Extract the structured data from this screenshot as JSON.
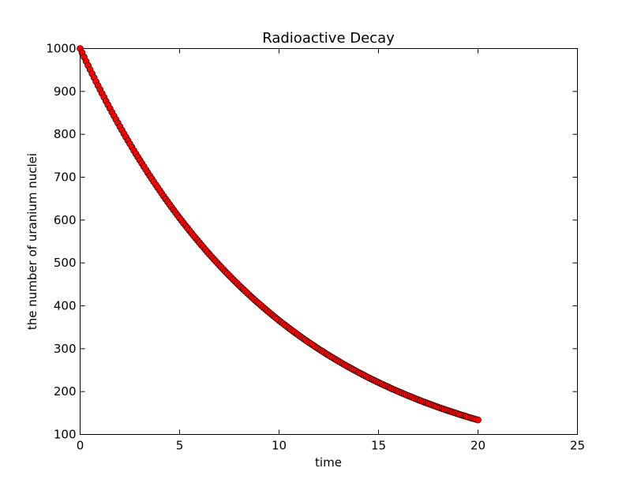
{
  "chart_data": {
    "type": "scatter",
    "title": "Radioactive Decay",
    "xlabel": "time",
    "ylabel": "the number of uranium nuclei",
    "xlim": [
      0,
      25
    ],
    "ylim": [
      100,
      1000
    ],
    "xticks": [
      0,
      5,
      10,
      15,
      20,
      25
    ],
    "yticks": [
      100,
      200,
      300,
      400,
      500,
      600,
      700,
      800,
      900,
      1000
    ],
    "grid": false,
    "marker_color": "#ff0000",
    "marker_edge_color": "#000000",
    "series": [
      {
        "x": [
          0,
          0.1,
          0.2,
          0.3,
          0.4,
          0.5,
          0.6,
          0.7,
          0.8,
          0.9,
          1.0,
          1.1,
          1.2,
          1.3,
          1.4,
          1.5,
          1.6,
          1.7,
          1.8,
          1.9,
          2.0,
          2.1,
          2.2,
          2.3,
          2.4,
          2.5,
          2.6,
          2.7,
          2.8,
          2.9,
          3.0,
          3.1,
          3.2,
          3.3,
          3.4,
          3.5,
          3.6,
          3.7,
          3.8,
          3.9,
          4.0,
          4.1,
          4.2,
          4.3,
          4.4,
          4.5,
          4.6,
          4.7,
          4.8,
          4.9,
          5.0,
          5.1,
          5.2,
          5.3,
          5.4,
          5.5,
          5.6,
          5.7,
          5.8,
          5.9,
          6.0,
          6.1,
          6.2,
          6.3,
          6.4,
          6.5,
          6.6,
          6.7,
          6.8,
          6.9,
          7.0,
          7.1,
          7.2,
          7.3,
          7.4,
          7.5,
          7.6,
          7.7,
          7.8,
          7.9,
          8.0,
          8.1,
          8.2,
          8.3,
          8.4,
          8.5,
          8.6,
          8.7,
          8.8,
          8.9,
          9.0,
          9.1,
          9.2,
          9.3,
          9.4,
          9.5,
          9.6,
          9.7,
          9.8,
          9.9,
          10.0,
          10.1,
          10.2,
          10.3,
          10.4,
          10.5,
          10.6,
          10.7,
          10.8,
          10.9,
          11.0,
          11.1,
          11.2,
          11.3,
          11.4,
          11.5,
          11.6,
          11.7,
          11.8,
          11.9,
          12.0,
          12.1,
          12.2,
          12.3,
          12.4,
          12.5,
          12.6,
          12.7,
          12.8,
          12.9,
          13.0,
          13.1,
          13.2,
          13.3,
          13.4,
          13.5,
          13.6,
          13.7,
          13.8,
          13.9,
          14.0,
          14.1,
          14.2,
          14.3,
          14.4,
          14.5,
          14.6,
          14.7,
          14.8,
          14.9,
          15.0,
          15.1,
          15.2,
          15.3,
          15.4,
          15.5,
          15.6,
          15.7,
          15.8,
          15.9,
          16.0,
          16.1,
          16.2,
          16.3,
          16.4,
          16.5,
          16.6,
          16.7,
          16.8,
          16.9,
          17.0,
          17.1,
          17.2,
          17.3,
          17.4,
          17.5,
          17.6,
          17.7,
          17.8,
          17.9,
          18.0,
          18.1,
          18.2,
          18.3,
          18.4,
          18.5,
          18.6,
          18.7,
          18.8,
          18.9,
          19.0,
          19.1,
          19.2,
          19.3,
          19.4,
          19.5,
          19.6,
          19.7,
          19.8,
          19.9,
          20.0
        ],
        "y": [
          1000.0,
          990.0,
          980.1,
          970.3,
          960.6,
          951.0,
          941.5,
          932.1,
          922.7,
          913.5,
          904.4,
          895.3,
          886.4,
          877.5,
          868.7,
          860.1,
          851.4,
          842.9,
          834.5,
          826.2,
          817.9,
          809.7,
          801.6,
          793.6,
          785.7,
          777.8,
          770.0,
          762.3,
          754.7,
          747.2,
          739.7,
          732.3,
          725.0,
          717.7,
          710.5,
          703.4,
          696.4,
          689.4,
          682.5,
          675.7,
          669.0,
          662.3,
          655.6,
          649.1,
          642.6,
          636.2,
          629.8,
          623.5,
          617.2,
          611.0,
          604.9,
          598.9,
          592.9,
          586.9,
          581.1,
          575.3,
          569.5,
          563.8,
          558.2,
          552.6,
          547.1,
          541.6,
          536.2,
          530.8,
          525.5,
          520.2,
          515.0,
          509.9,
          504.8,
          499.7,
          494.7,
          489.8,
          484.9,
          480.0,
          475.2,
          470.5,
          465.8,
          461.1,
          456.5,
          451.9,
          447.4,
          442.9,
          438.5,
          434.1,
          429.8,
          425.5,
          421.2,
          417.0,
          412.8,
          408.7,
          404.6,
          400.6,
          396.5,
          392.6,
          388.6,
          384.8,
          380.9,
          377.1,
          373.3,
          369.6,
          365.9,
          362.2,
          358.6,
          355.0,
          351.5,
          347.9,
          344.5,
          341.0,
          337.6,
          334.2,
          330.9,
          327.6,
          324.3,
          321.0,
          317.8,
          314.6,
          311.5,
          308.4,
          305.3,
          302.2,
          299.2,
          296.2,
          293.3,
          290.3,
          287.4,
          284.5,
          281.7,
          278.9,
          276.1,
          273.3,
          270.6,
          267.9,
          265.2,
          262.5,
          259.9,
          257.3,
          254.7,
          252.2,
          249.7,
          247.2,
          244.7,
          242.3,
          239.8,
          237.4,
          235.0,
          232.7,
          230.4,
          228.1,
          225.8,
          223.5,
          221.3,
          219.1,
          216.9,
          214.7,
          212.6,
          210.4,
          208.3,
          206.2,
          204.2,
          202.1,
          200.1,
          198.1,
          196.1,
          194.2,
          192.2,
          190.3,
          188.4,
          186.5,
          184.6,
          182.8,
          180.9,
          179.1,
          177.3,
          175.6,
          173.8,
          172.1,
          170.4,
          168.7,
          167.0,
          165.3,
          163.6,
          162.0,
          160.4,
          158.8,
          157.2,
          155.6,
          154.1,
          152.5,
          151.0,
          149.5,
          148.0,
          146.5,
          145.0,
          143.6,
          142.2,
          140.7,
          139.3,
          137.9,
          136.6,
          135.2,
          133.9
        ]
      }
    ]
  }
}
